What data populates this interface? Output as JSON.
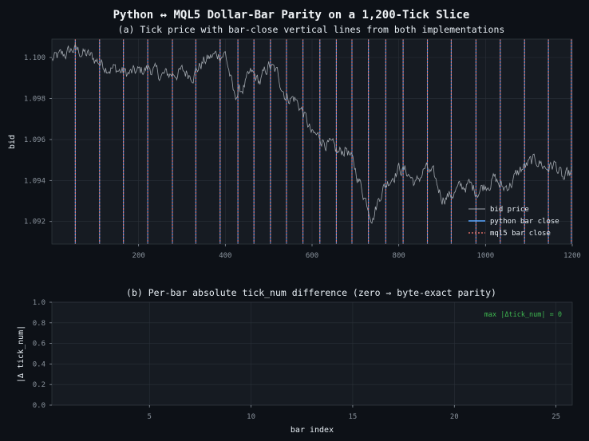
{
  "title": "Python ↔ MQL5 Dollar-Bar Parity on a 1,200-Tick Slice",
  "colors": {
    "background": "#0d1117",
    "axes_bg": "#161b22",
    "grid": "#2a3038",
    "price": "#a0a6ad",
    "python": "#58a6ff",
    "mql5": "#ff7b72",
    "annotation": "#3fb950"
  },
  "chart_data": [
    {
      "type": "line",
      "title": "(a) Tick price with bar-close vertical lines from both implementations",
      "xlabel": "",
      "ylabel": "bid",
      "xlim": [
        0,
        1200
      ],
      "ylim": [
        1.0909,
        1.1009
      ],
      "xticks": [
        "200",
        "400",
        "600",
        "800",
        "1000",
        "1200"
      ],
      "xtick_values": [
        200,
        400,
        600,
        800,
        1000,
        1200
      ],
      "yticks": [
        "1.092",
        "1.094",
        "1.096",
        "1.098",
        "1.100"
      ],
      "ytick_values": [
        1.092,
        1.094,
        1.096,
        1.098,
        1.1
      ],
      "grid": true,
      "legend": {
        "placement": "lower-right",
        "entries": [
          "bid price",
          "python bar close",
          "mql5 bar close"
        ]
      },
      "series": [
        {
          "name": "bid price",
          "x": [
            0,
            25,
            50,
            75,
            100,
            125,
            150,
            175,
            200,
            225,
            250,
            275,
            300,
            325,
            350,
            375,
            400,
            410,
            420,
            440,
            460,
            480,
            500,
            520,
            540,
            560,
            580,
            600,
            620,
            640,
            660,
            680,
            700,
            720,
            740,
            760,
            780,
            800,
            820,
            840,
            860,
            880,
            900,
            920,
            940,
            960,
            980,
            1000,
            1020,
            1040,
            1060,
            1080,
            1100,
            1120,
            1140,
            1160,
            1180,
            1200
          ],
          "y": [
            1.0999,
            1.1001,
            1.1004,
            1.1002,
            1.0999,
            1.0996,
            1.0994,
            1.0992,
            1.0993,
            1.0995,
            1.0991,
            1.0992,
            1.0993,
            1.0992,
            1.0998,
            1.1001,
            1.1002,
            1.0992,
            1.0981,
            1.0985,
            1.0992,
            1.0988,
            1.0996,
            1.0992,
            1.0981,
            1.098,
            1.0973,
            1.0962,
            1.0961,
            1.0957,
            1.0953,
            1.0956,
            1.0945,
            1.0933,
            1.0922,
            1.0935,
            1.0941,
            1.0946,
            1.0944,
            1.0938,
            1.0946,
            1.0942,
            1.0932,
            1.0933,
            1.0936,
            1.0938,
            1.0935,
            1.0938,
            1.0941,
            1.0936,
            1.0939,
            1.0945,
            1.0948,
            1.095,
            1.0946,
            1.0948,
            1.094,
            1.0944
          ]
        }
      ],
      "bar_closes": [
        54,
        110,
        165,
        221,
        278,
        332,
        388,
        429,
        466,
        504,
        541,
        579,
        618,
        656,
        692,
        730,
        770,
        810,
        866,
        921,
        978,
        1034,
        1090,
        1145,
        1198
      ]
    },
    {
      "type": "bar",
      "title": "(b) Per-bar absolute tick_num difference (zero ⇒ byte-exact parity)",
      "xlabel": "bar index",
      "ylabel": "|Δ tick_num|",
      "xlim": [
        0.2,
        25.8
      ],
      "ylim": [
        0,
        1.0
      ],
      "xticks": [
        "5",
        "10",
        "15",
        "20",
        "25"
      ],
      "xtick_values": [
        5,
        10,
        15,
        20,
        25
      ],
      "yticks": [
        "0.0",
        "0.2",
        "0.4",
        "0.6",
        "0.8",
        "1.0"
      ],
      "ytick_values": [
        0,
        0.2,
        0.4,
        0.6,
        0.8,
        1.0
      ],
      "grid": true,
      "annotation": "max |Δtick_num| = 0",
      "x": [
        1,
        2,
        3,
        4,
        5,
        6,
        7,
        8,
        9,
        10,
        11,
        12,
        13,
        14,
        15,
        16,
        17,
        18,
        19,
        20,
        21,
        22,
        23,
        24,
        25
      ],
      "values": [
        0,
        0,
        0,
        0,
        0,
        0,
        0,
        0,
        0,
        0,
        0,
        0,
        0,
        0,
        0,
        0,
        0,
        0,
        0,
        0,
        0,
        0,
        0,
        0,
        0
      ]
    }
  ]
}
